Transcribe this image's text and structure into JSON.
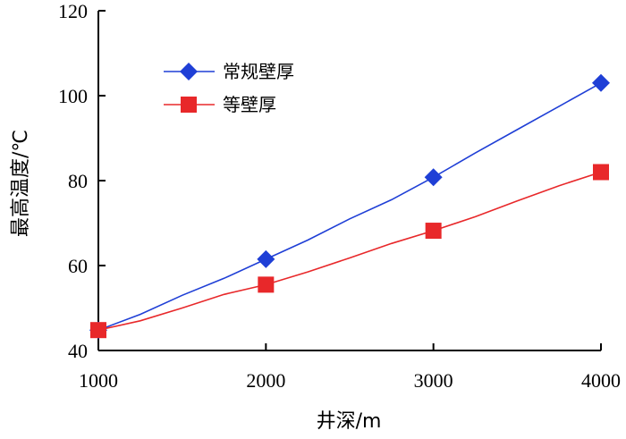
{
  "chart_data": {
    "type": "line",
    "xlabel": "井深/m",
    "ylabel": "最高温度/℃",
    "xlim": [
      1000,
      4000
    ],
    "ylim": [
      40,
      120
    ],
    "x_ticks": [
      1000,
      2000,
      3000,
      4000
    ],
    "y_ticks": [
      40,
      60,
      80,
      100,
      120
    ],
    "grid": false,
    "legend_position": "top-left",
    "series": [
      {
        "name": "常规壁厚",
        "color": "#1f3fd6",
        "marker": "diamond",
        "x": [
          1000,
          1250,
          1500,
          1750,
          2000,
          2250,
          2500,
          2750,
          3000,
          3250,
          3500,
          3750,
          4000
        ],
        "y": [
          44.8,
          48.5,
          53.0,
          57.0,
          61.5,
          66.0,
          71.0,
          75.5,
          80.8,
          86.5,
          92.0,
          97.5,
          103.0
        ],
        "marker_x": [
          1000,
          2000,
          3000,
          4000
        ],
        "marker_y": [
          44.8,
          61.5,
          80.8,
          103.0
        ]
      },
      {
        "name": "等壁厚",
        "color": "#e8282a",
        "marker": "square",
        "x": [
          1000,
          1250,
          1500,
          1750,
          2000,
          2250,
          2500,
          2750,
          3000,
          3250,
          3500,
          3750,
          4000
        ],
        "y": [
          44.8,
          47.0,
          50.0,
          53.2,
          55.5,
          58.5,
          61.8,
          65.2,
          68.2,
          71.5,
          75.2,
          78.8,
          82.0
        ],
        "marker_x": [
          1000,
          2000,
          3000,
          4000
        ],
        "marker_y": [
          44.8,
          55.5,
          68.2,
          82.0
        ]
      }
    ]
  }
}
